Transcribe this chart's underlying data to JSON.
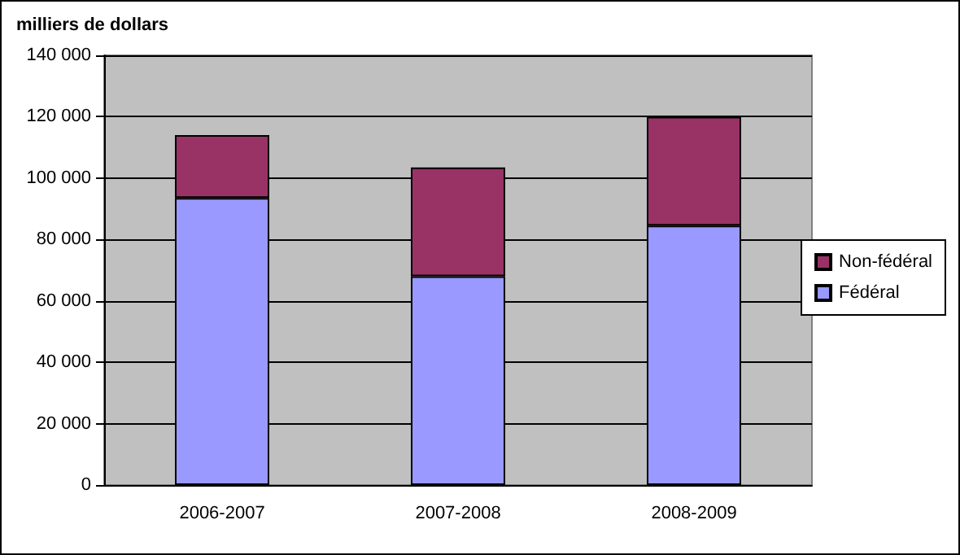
{
  "chart_data": {
    "type": "bar",
    "ylabel": "milliers de dollars",
    "categories": [
      "2006-2007",
      "2007-2008",
      "2008-2009"
    ],
    "stacked": true,
    "series": [
      {
        "name": "Fédéral",
        "color": "#9999ff",
        "values": [
          93500,
          68000,
          84500
        ]
      },
      {
        "name": "Non-fédéral",
        "color": "#993366",
        "values": [
          20500,
          35500,
          35500
        ]
      }
    ],
    "ylim": [
      0,
      140000
    ],
    "yticks": [
      {
        "value": 0,
        "label": "0"
      },
      {
        "value": 20000,
        "label": "20 000"
      },
      {
        "value": 40000,
        "label": "40 000"
      },
      {
        "value": 60000,
        "label": "60 000"
      },
      {
        "value": 80000,
        "label": "80 000"
      },
      {
        "value": 100000,
        "label": "100 000"
      },
      {
        "value": 120000,
        "label": "120 000"
      },
      {
        "value": 140000,
        "label": "140 000"
      }
    ],
    "grid": "y",
    "legend": "right"
  }
}
